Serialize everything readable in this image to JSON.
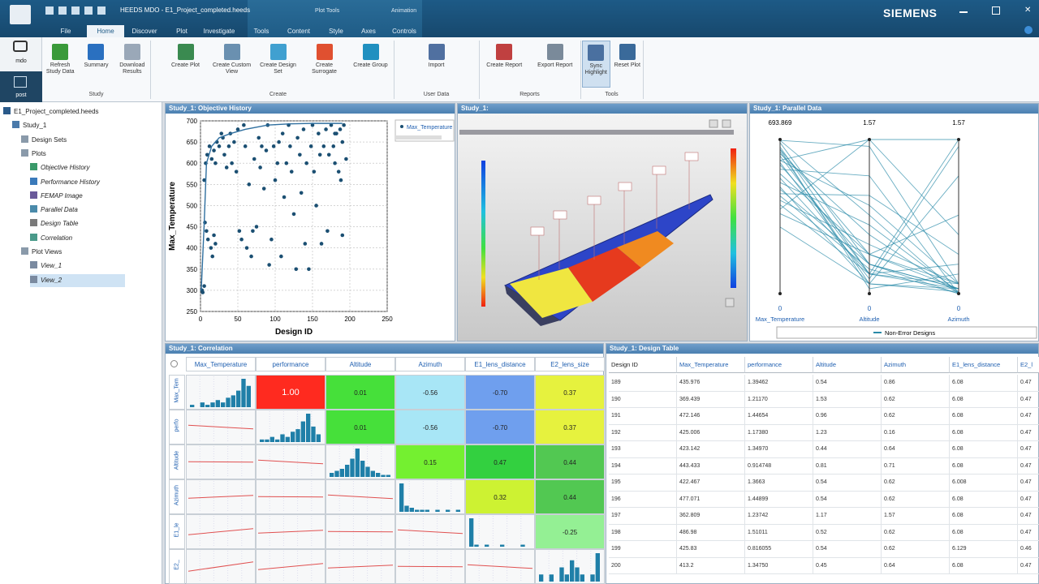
{
  "titlebar": {
    "title": "HEEDS MDO - E1_Project_completed.heeds",
    "brand": "SIEMENS",
    "context_tabs": [
      "Plot Tools",
      "Animation"
    ]
  },
  "tabs": [
    "File",
    "Home",
    "Discover",
    "Plot",
    "Investigate",
    "Tools",
    "Content",
    "Style",
    "Axes",
    "Controls"
  ],
  "active_tab": 1,
  "modes": [
    "mdo",
    "post"
  ],
  "ribbon": {
    "groups": [
      {
        "label": "Study",
        "buttons": [
          "Refresh Study Data",
          "Summary",
          "Download Results"
        ]
      },
      {
        "label": "Create",
        "buttons": [
          "Create Plot",
          "Create Custom View",
          "Create Design Set",
          "Create Surrogate",
          "Create Group"
        ]
      },
      {
        "label": "User Data",
        "buttons": [
          "Import"
        ]
      },
      {
        "label": "Reports",
        "buttons": [
          "Create Report",
          "Export Report"
        ]
      },
      {
        "label": "Tools",
        "buttons": [
          "Sync Highlight",
          "Reset Plot"
        ]
      }
    ]
  },
  "tree": [
    {
      "label": "E1_Project_completed.heeds",
      "level": 0
    },
    {
      "label": "Study_1",
      "level": 1
    },
    {
      "label": "Design Sets",
      "level": 2
    },
    {
      "label": "Plots",
      "level": 2
    },
    {
      "label": "Objective History",
      "level": 3
    },
    {
      "label": "Performance History",
      "level": 3
    },
    {
      "label": "FEMAP Image",
      "level": 3
    },
    {
      "label": "Parallel Data",
      "level": 3
    },
    {
      "label": "Design Table",
      "level": 3
    },
    {
      "label": "Correlation",
      "level": 3
    },
    {
      "label": "Plot Views",
      "level": 2
    },
    {
      "label": "View_1",
      "level": 3
    },
    {
      "label": "View_2",
      "level": 3,
      "selected": true
    }
  ],
  "objective_history": {
    "type": "scatter",
    "title": "Study_1: Objective History",
    "x_label": "Design ID",
    "y_label": "Max_Temperature",
    "xlim": [
      0,
      250
    ],
    "xticks": [
      0,
      50,
      100,
      150,
      200,
      250
    ],
    "ylim": [
      250,
      700
    ],
    "yticks": [
      250,
      300,
      350,
      400,
      450,
      500,
      550,
      600,
      650,
      700
    ],
    "grid": true,
    "series": [
      {
        "name": "Max_Temperature",
        "color": "#1b4f72",
        "x": [
          2,
          3,
          5,
          6,
          8,
          10,
          5,
          7,
          9,
          12,
          15,
          18,
          20,
          22,
          25,
          14,
          16,
          18,
          20,
          28,
          30,
          32,
          35,
          38,
          40,
          42,
          45,
          48,
          50,
          52,
          55,
          58,
          60,
          62,
          65,
          68,
          70,
          72,
          75,
          78,
          80,
          82,
          85,
          88,
          90,
          92,
          95,
          98,
          100,
          103,
          105,
          108,
          110,
          112,
          115,
          118,
          120,
          122,
          125,
          128,
          130,
          133,
          135,
          138,
          140,
          142,
          145,
          148,
          150,
          152,
          155,
          158,
          160,
          162,
          165,
          168,
          170,
          172,
          175,
          178,
          180,
          182,
          185,
          187,
          190,
          192,
          195,
          180,
          188,
          190
        ],
        "values": [
          300,
          295,
          310,
          460,
          440,
          420,
          560,
          600,
          620,
          640,
          610,
          630,
          600,
          650,
          640,
          400,
          380,
          430,
          410,
          670,
          660,
          620,
          590,
          640,
          670,
          600,
          650,
          580,
          680,
          440,
          420,
          690,
          640,
          400,
          550,
          380,
          440,
          610,
          450,
          660,
          590,
          640,
          540,
          630,
          690,
          360,
          420,
          640,
          560,
          600,
          650,
          380,
          670,
          520,
          600,
          690,
          640,
          580,
          480,
          350,
          660,
          620,
          530,
          680,
          410,
          600,
          350,
          640,
          690,
          580,
          500,
          670,
          620,
          410,
          640,
          680,
          440,
          620,
          690,
          640,
          600,
          670,
          580,
          680,
          430,
          690,
          610,
          670,
          560,
          650
        ]
      },
      {
        "color": "#2f6f9f",
        "x": [
          1,
          5,
          8,
          15,
          25,
          40,
          60,
          90,
          120,
          150,
          175,
          190
        ],
        "values": [
          300,
          460,
          600,
          640,
          660,
          670,
          680,
          690,
          693,
          694,
          694,
          694
        ]
      }
    ]
  },
  "view_3d": {
    "title": "Study_1:"
  },
  "parallel_data": {
    "type": "parallel",
    "title": "Study_1: Parallel Data",
    "color": "#2a8aa8",
    "legend": "Non-Error Designs",
    "axes": [
      {
        "name": "Max_Temperature",
        "min": 0,
        "max": 693.869
      },
      {
        "name": "Altitude",
        "min": 0,
        "max": 1.57
      },
      {
        "name": "Azimuth",
        "min": 0,
        "max": 1.57
      }
    ],
    "lines": [
      [
        690,
        1.5,
        0.1
      ],
      [
        680,
        0.3,
        0.0
      ],
      [
        660,
        0.2,
        0.05
      ],
      [
        650,
        0.4,
        0.1
      ],
      [
        640,
        0.1,
        0.02
      ],
      [
        630,
        0.6,
        0.0
      ],
      [
        620,
        0.2,
        0.3
      ],
      [
        600,
        0.9,
        0.1
      ],
      [
        590,
        0.15,
        1.5
      ],
      [
        580,
        0.3,
        0.05
      ],
      [
        560,
        1.2,
        0.0
      ],
      [
        540,
        0.4,
        0.8
      ],
      [
        520,
        0.2,
        0.1
      ],
      [
        500,
        0.7,
        0.02
      ],
      [
        480,
        0.1,
        1.2
      ],
      [
        470,
        0.3,
        0.05
      ],
      [
        450,
        1.0,
        0.4
      ],
      [
        440,
        0.25,
        0.0
      ],
      [
        420,
        0.5,
        0.1
      ],
      [
        400,
        0.2,
        1.57
      ],
      [
        380,
        1.57,
        0.6
      ],
      [
        360,
        0.4,
        0.05
      ],
      [
        600,
        1.57,
        1.57
      ],
      [
        650,
        0.05,
        0.2
      ],
      [
        690,
        0.8,
        0.0
      ],
      [
        300,
        0.1,
        0.05
      ]
    ]
  },
  "correlation": {
    "title": "Study_1: Correlation",
    "columns": [
      "Max_Temperature",
      "performance",
      "Altitude",
      "Azimuth",
      "E1_lens_distance",
      "E2_lens_size"
    ],
    "rows": [
      "Max_Tem",
      "perfo",
      "Altitude",
      "Azimuth",
      "E1_le",
      "E2_"
    ],
    "cells": [
      [
        null,
        "1.00",
        "0.01",
        "-0.56",
        "-0.70",
        "0.37"
      ],
      [
        null,
        null,
        "0.01",
        "-0.56",
        "-0.70",
        "0.37"
      ],
      [
        null,
        null,
        null,
        "0.15",
        "0.47",
        "0.44"
      ],
      [
        null,
        null,
        null,
        null,
        "0.32",
        "0.44"
      ],
      [
        null,
        null,
        null,
        null,
        null,
        "-0.25"
      ],
      [
        null,
        null,
        null,
        null,
        null,
        null
      ]
    ],
    "colors": [
      [
        null,
        "#ff2a1f",
        "#46e03a",
        "#a8e6f6",
        "#6f9fee",
        "#e6f23e"
      ],
      [
        null,
        null,
        "#46e03a",
        "#a8e6f6",
        "#6f9fee",
        "#e6f23e"
      ],
      [
        null,
        null,
        null,
        "#74f030",
        "#33d040",
        "#52c852"
      ],
      [
        null,
        null,
        null,
        null,
        "#cdf232",
        "#52c852"
      ],
      [
        null,
        null,
        null,
        null,
        null,
        "#94f094"
      ],
      [
        null,
        null,
        null,
        null,
        null,
        null
      ]
    ],
    "histograms": [
      [
        1,
        0,
        2,
        1,
        2,
        3,
        2,
        4,
        5,
        7,
        12,
        9
      ],
      [
        1,
        1,
        2,
        1,
        3,
        2,
        4,
        5,
        8,
        11,
        6,
        3
      ],
      [
        2,
        3,
        4,
        6,
        9,
        14,
        8,
        5,
        3,
        2,
        1,
        1
      ],
      [
        14,
        3,
        2,
        1,
        1,
        1,
        0,
        1,
        0,
        1,
        0,
        1
      ],
      [
        14,
        1,
        0,
        1,
        0,
        0,
        1,
        0,
        0,
        0,
        1,
        0
      ],
      [
        1,
        0,
        1,
        0,
        2,
        1,
        3,
        2,
        1,
        0,
        1,
        4
      ]
    ],
    "histogram_color": "#1f7fa8"
  },
  "design_table": {
    "title": "Study_1: Design Table",
    "columns": [
      "Design ID",
      "Max_Temperature",
      "performance",
      "Altitude",
      "Azimuth",
      "E1_lens_distance",
      "E2_l"
    ],
    "rows": [
      [
        "189",
        "435.976",
        "1.39462",
        "0.54",
        "0.86",
        "6.08",
        "0.47"
      ],
      [
        "190",
        "369.439",
        "1.21170",
        "1.53",
        "0.62",
        "6.08",
        "0.47"
      ],
      [
        "191",
        "472.146",
        "1.44654",
        "0.96",
        "0.62",
        "6.08",
        "0.47"
      ],
      [
        "192",
        "425.006",
        "1.17380",
        "1.23",
        "0.16",
        "6.08",
        "0.47"
      ],
      [
        "193",
        "423.142",
        "1.34970",
        "0.44",
        "0.64",
        "6.08",
        "0.47"
      ],
      [
        "194",
        "443.433",
        "0.914748",
        "0.81",
        "0.71",
        "6.08",
        "0.47"
      ],
      [
        "195",
        "422.467",
        "1.3663",
        "0.54",
        "0.62",
        "6.008",
        "0.47"
      ],
      [
        "196",
        "477.071",
        "1.44899",
        "0.54",
        "0.62",
        "6.08",
        "0.47"
      ],
      [
        "197",
        "362.809",
        "1.23742",
        "1.17",
        "1.57",
        "6.08",
        "0.47"
      ],
      [
        "198",
        "486.98",
        "1.51011",
        "0.52",
        "0.62",
        "6.08",
        "0.47"
      ],
      [
        "199",
        "425.83",
        "0.816055",
        "0.54",
        "0.62",
        "6.129",
        "0.46"
      ],
      [
        "200",
        "413.2",
        "1.34750",
        "0.45",
        "0.64",
        "6.08",
        "0.47"
      ]
    ]
  }
}
